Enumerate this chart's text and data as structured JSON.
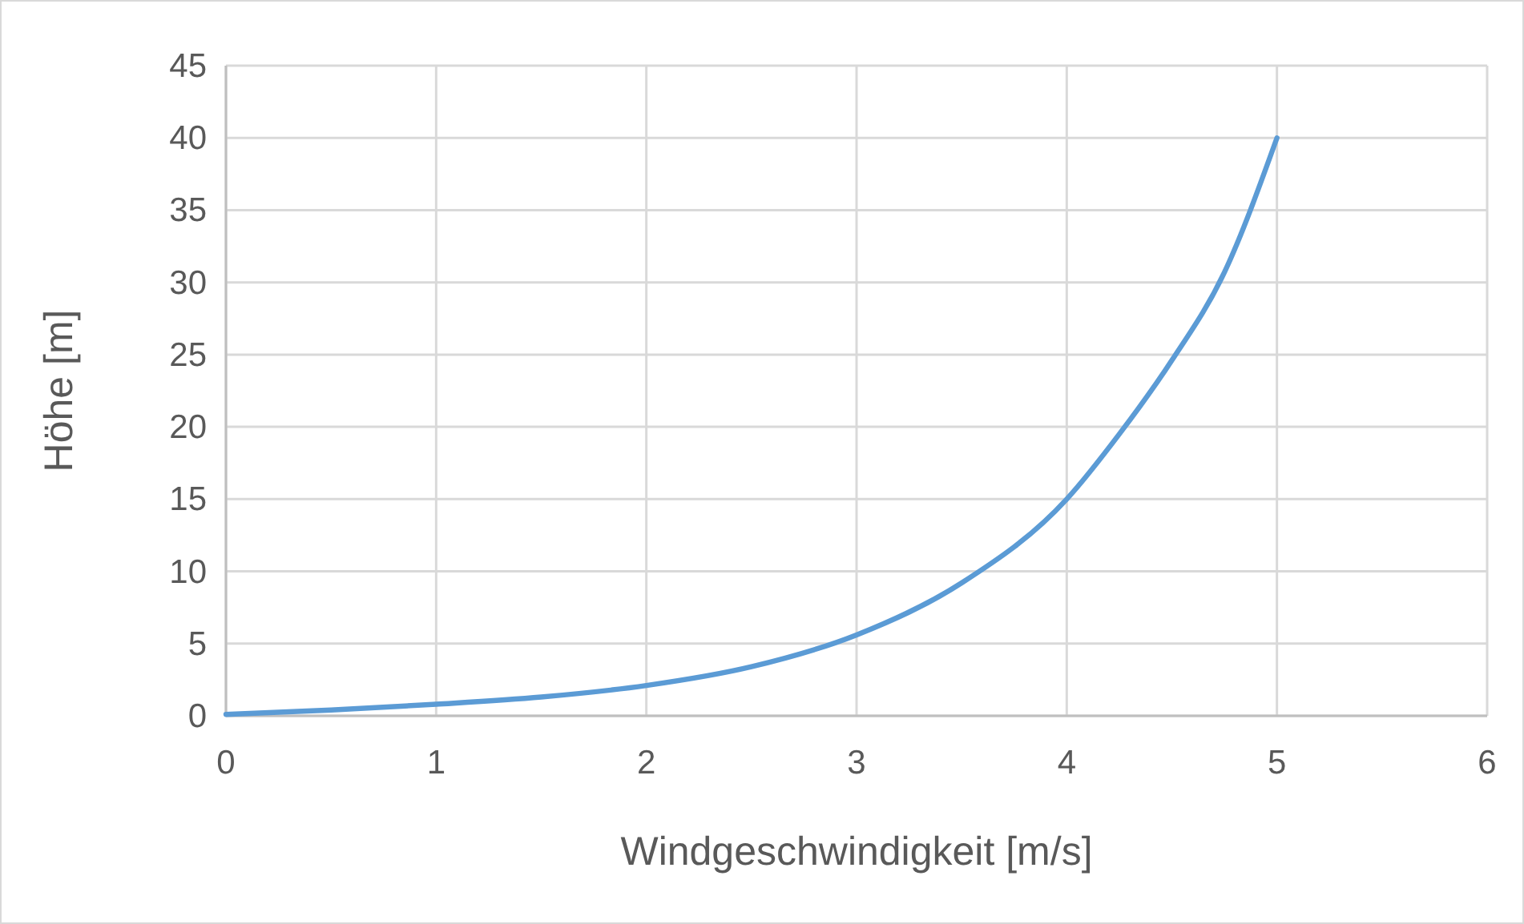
{
  "chart_data": {
    "type": "line",
    "xlabel": "Windgeschwindigkeit [m/s]",
    "ylabel": "Höhe [m]",
    "x": [
      0,
      0.5,
      1,
      1.5,
      2,
      2.5,
      3,
      3.5,
      4,
      4.25,
      4.5,
      4.75,
      5
    ],
    "series": [
      {
        "color": "#5b9bd5",
        "values": [
          0.1,
          0.4,
          0.8,
          1.3,
          2.1,
          3.4,
          5.6,
          9.2,
          15,
          19.5,
          24.6,
          30.7,
          40
        ]
      }
    ],
    "xlim": [
      0,
      6
    ],
    "xticks": [
      0,
      1,
      2,
      3,
      4,
      5,
      6
    ],
    "ylim": [
      0,
      45
    ],
    "yticks": [
      0,
      5,
      10,
      15,
      20,
      25,
      30,
      35,
      40,
      45
    ],
    "grid": true,
    "marker": "none",
    "line_style": "solid"
  }
}
